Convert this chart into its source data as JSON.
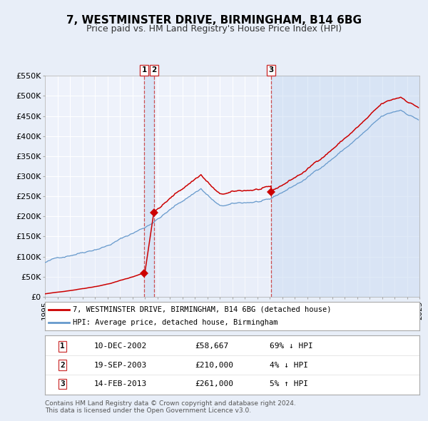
{
  "title": "7, WESTMINSTER DRIVE, BIRMINGHAM, B14 6BG",
  "subtitle": "Price paid vs. HM Land Registry's House Price Index (HPI)",
  "xlim": [
    1995,
    2025
  ],
  "ylim": [
    0,
    550000
  ],
  "yticks": [
    0,
    50000,
    100000,
    150000,
    200000,
    250000,
    300000,
    350000,
    400000,
    450000,
    500000,
    550000
  ],
  "ytick_labels": [
    "£0",
    "£50K",
    "£100K",
    "£150K",
    "£200K",
    "£250K",
    "£300K",
    "£350K",
    "£400K",
    "£450K",
    "£500K",
    "£550K"
  ],
  "bg_color": "#e8eef8",
  "plot_bg_color": "#eef2fb",
  "grid_color": "#ffffff",
  "red_line_color": "#cc0000",
  "blue_line_color": "#6699cc",
  "blue_fill_color": "#dce6f5",
  "transactions": [
    {
      "label": "1",
      "date_num": 2002.95,
      "price": 58667,
      "x_line": 2002.95
    },
    {
      "label": "2",
      "date_num": 2003.72,
      "price": 210000,
      "x_line": 2003.72
    },
    {
      "label": "3",
      "date_num": 2013.12,
      "price": 261000,
      "x_line": 2013.12
    }
  ],
  "legend_red": "7, WESTMINSTER DRIVE, BIRMINGHAM, B14 6BG (detached house)",
  "legend_blue": "HPI: Average price, detached house, Birmingham",
  "table_rows": [
    [
      "1",
      "10-DEC-2002",
      "£58,667",
      "69% ↓ HPI"
    ],
    [
      "2",
      "19-SEP-2003",
      "£210,000",
      "4% ↓ HPI"
    ],
    [
      "3",
      "14-FEB-2013",
      "£261,000",
      "5% ↑ HPI"
    ]
  ],
  "footer1": "Contains HM Land Registry data © Crown copyright and database right 2024.",
  "footer2": "This data is licensed under the Open Government Licence v3.0."
}
